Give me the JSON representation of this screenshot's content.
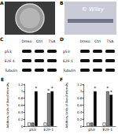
{
  "panels": {
    "A": {
      "label": "A"
    },
    "B": {
      "label": "B",
      "watermark": "© Wiley"
    },
    "C": {
      "label": "C",
      "columns": [
        "Dmso",
        "Ctrl",
        "TSA"
      ],
      "rows": [
        "p53",
        "E2F-1",
        "Tubulin"
      ]
    },
    "D": {
      "label": "D",
      "columns": [
        "Dmso",
        "Ctrl",
        "TSA"
      ],
      "rows": [
        "p53",
        "E2F-1",
        "Tubulin"
      ]
    }
  },
  "chart_data": [
    {
      "panel": "E",
      "type": "bar",
      "y_label": "Arbitrary Units of Band Intensity",
      "categories": [
        "p53",
        "E2F-1"
      ],
      "ylim": [
        0,
        1.2
      ],
      "yticks": [
        0,
        0.2,
        0.4,
        0.6,
        0.8,
        1,
        1.2
      ],
      "grid": false,
      "series": [
        {
          "color": "#ffffff",
          "values": [
            0.1,
            0.1
          ],
          "marks": [
            null,
            null
          ]
        },
        {
          "color": "#888888",
          "values": [
            0.1,
            0.95
          ],
          "marks": [
            null,
            "*"
          ]
        },
        {
          "color": "#000000",
          "values": [
            1.0,
            1.0
          ],
          "marks": [
            "*",
            "*"
          ]
        }
      ]
    },
    {
      "panel": "F",
      "type": "bar",
      "y_label": "Arbitrary Units of Band Intensity",
      "categories": [
        "p53",
        "E2F-1"
      ],
      "ylim": [
        0,
        1.2
      ],
      "yticks": [
        0,
        0.2,
        0.4,
        0.6,
        0.8,
        1,
        1.2
      ],
      "grid": false,
      "series": [
        {
          "color": "#ffffff",
          "values": [
            0.1,
            0.1
          ],
          "marks": [
            null,
            null
          ]
        },
        {
          "color": "#888888",
          "values": [
            0.1,
            1.0
          ],
          "marks": [
            null,
            "*"
          ]
        },
        {
          "color": "#000000",
          "values": [
            1.0,
            0.9
          ],
          "marks": [
            "*",
            "*"
          ]
        }
      ]
    }
  ]
}
